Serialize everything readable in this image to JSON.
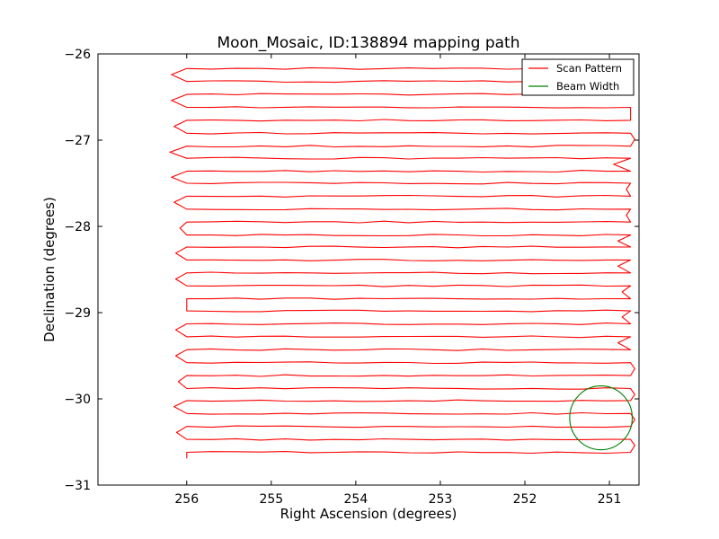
{
  "chart_data": {
    "type": "line",
    "title": "Moon_Mosaic, ID:138894 mapping path",
    "xlabel": "Right Ascension (degrees)",
    "ylabel": "Declination (degrees)",
    "xlim": [
      257.05,
      250.65
    ],
    "ylim": [
      -31,
      -26
    ],
    "xticks": [
      256,
      255,
      254,
      253,
      252,
      251
    ],
    "xtick_labels": [
      "256",
      "255",
      "254",
      "253",
      "252",
      "251"
    ],
    "yticks": [
      -26,
      -27,
      -28,
      -29,
      -30,
      -31
    ],
    "ytick_labels": [
      "−26",
      "−27",
      "−28",
      "−29",
      "−30",
      "−31"
    ],
    "grid": false,
    "legend": {
      "location": "top-right",
      "entries": [
        {
          "label": "Scan Pattern",
          "color": "#ff0000",
          "marker": "line"
        },
        {
          "label": "Beam Width",
          "color": "#008000",
          "marker": "line"
        }
      ]
    },
    "scan_pattern": {
      "name": "Scan Pattern",
      "color": "#ff0000",
      "ra_start": 256.0,
      "ra_end": 250.75,
      "rows": [
        {
          "dec": -26.17,
          "ra_min": 256.18,
          "ra_max": 251.0
        },
        {
          "dec": -26.32,
          "ra_min": 256.18,
          "ra_max": 250.8
        },
        {
          "dec": -26.47,
          "ra_min": 256.18,
          "ra_max": 250.8
        },
        {
          "dec": -26.62,
          "ra_min": 256.15,
          "ra_max": 250.75
        },
        {
          "dec": -26.77,
          "ra_min": 256.15,
          "ra_max": 250.75
        },
        {
          "dec": -26.92,
          "ra_min": 256.2,
          "ra_max": 250.7
        },
        {
          "dec": -27.07,
          "ra_min": 256.2,
          "ra_max": 250.95
        },
        {
          "dec": -27.21,
          "ra_min": 256.2,
          "ra_max": 250.95
        },
        {
          "dec": -27.36,
          "ra_min": 256.18,
          "ra_max": 250.8
        },
        {
          "dec": -27.5,
          "ra_min": 256.18,
          "ra_max": 250.8
        },
        {
          "dec": -27.65,
          "ra_min": 256.15,
          "ra_max": 250.8
        },
        {
          "dec": -27.8,
          "ra_min": 256.15,
          "ra_max": 250.8
        },
        {
          "dec": -27.95,
          "ra_min": 256.08,
          "ra_max": 250.9
        },
        {
          "dec": -28.1,
          "ra_min": 256.08,
          "ra_max": 250.9
        },
        {
          "dec": -28.24,
          "ra_min": 256.13,
          "ra_max": 250.9
        },
        {
          "dec": -28.39,
          "ra_min": 256.13,
          "ra_max": 250.9
        },
        {
          "dec": -28.54,
          "ra_min": 256.13,
          "ra_max": 250.85
        },
        {
          "dec": -28.69,
          "ra_min": 256.13,
          "ra_max": 250.85
        },
        {
          "dec": -28.84,
          "ra_min": 256.0,
          "ra_max": 250.85
        },
        {
          "dec": -28.98,
          "ra_min": 256.0,
          "ra_max": 250.85
        },
        {
          "dec": -29.13,
          "ra_min": 256.13,
          "ra_max": 250.9
        },
        {
          "dec": -29.28,
          "ra_min": 256.13,
          "ra_max": 250.9
        },
        {
          "dec": -29.43,
          "ra_min": 256.13,
          "ra_max": 250.7
        },
        {
          "dec": -29.58,
          "ra_min": 256.13,
          "ra_max": 250.7
        },
        {
          "dec": -29.73,
          "ra_min": 256.1,
          "ra_max": 250.7
        },
        {
          "dec": -29.88,
          "ra_min": 256.1,
          "ra_max": 250.7
        },
        {
          "dec": -30.02,
          "ra_min": 256.15,
          "ra_max": 250.7
        },
        {
          "dec": -30.17,
          "ra_min": 256.15,
          "ra_max": 250.7
        },
        {
          "dec": -30.32,
          "ra_min": 256.12,
          "ra_max": 250.7
        },
        {
          "dec": -30.47,
          "ra_min": 256.12,
          "ra_max": 250.7
        },
        {
          "dec": -30.62,
          "ra_min": 256.0,
          "ra_max": 252.45
        }
      ]
    },
    "beam_width": {
      "name": "Beam Width",
      "color": "#008000",
      "center_ra": 251.1,
      "center_dec": -30.22,
      "radius_deg": 0.37
    }
  }
}
